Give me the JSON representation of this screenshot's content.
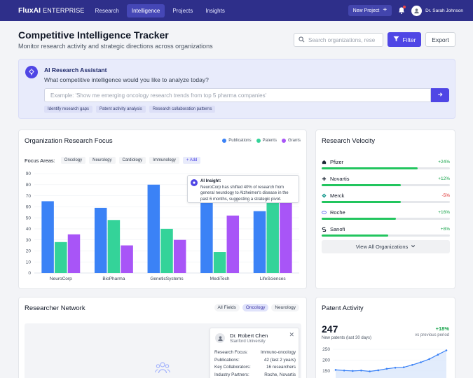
{
  "nav": {
    "brand_bold": "FluxAI",
    "brand_light": "ENTERPRISE",
    "links": [
      "Research",
      "Intelligence",
      "Projects",
      "Insights"
    ],
    "active_link": "Intelligence",
    "new_project": "New Project",
    "user_name": "Dr. Sarah Johnson"
  },
  "header": {
    "title": "Competitive Intelligence Tracker",
    "subtitle": "Monitor research activity and strategic directions across organizations",
    "search_placeholder": "Search organizations, rese",
    "filter_label": "Filter",
    "export_label": "Export"
  },
  "assistant": {
    "title": "AI Research Assistant",
    "question": "What competitive intelligence would you like to analyze today?",
    "input_placeholder": "Example: 'Show me emerging oncology research trends from top 5 pharma companies'",
    "chips": [
      "Identify research gaps",
      "Patent activity analysis",
      "Research collaboration patterns"
    ]
  },
  "org_focus": {
    "title": "Organization Research Focus",
    "legend": [
      "Publications",
      "Patents",
      "Grants"
    ],
    "focus_label": "Focus Areas:",
    "focus_tags": [
      "Oncology",
      "Neurology",
      "Cardiology",
      "Immunology"
    ],
    "add_label": "+ Add",
    "insight_title": "AI Insight:",
    "insight_text": "NeuroCorp has shifted 40% of research from general neurology to Alzheimer's disease in the past 6 months, suggesting a strategic pivot."
  },
  "chart_data": {
    "type": "bar",
    "categories": [
      "NeuroCorp",
      "BioPharma",
      "GeneticSystems",
      "MediTech",
      "LifeSciences"
    ],
    "series": [
      {
        "name": "Publications",
        "values": [
          65,
          59,
          80,
          81,
          56
        ],
        "color": "#3b82f6"
      },
      {
        "name": "Patents",
        "values": [
          28,
          48,
          40,
          19,
          86
        ],
        "color": "#34d399"
      },
      {
        "name": "Grants",
        "values": [
          35,
          25,
          30,
          52,
          65
        ],
        "color": "#a855f7"
      }
    ],
    "ylim": [
      0,
      90
    ],
    "yticks": [
      0,
      10,
      20,
      30,
      40,
      50,
      60,
      70,
      80,
      90
    ]
  },
  "velocity": {
    "title": "Research Velocity",
    "items": [
      {
        "name": "Pfizer",
        "change": "+24%",
        "progress": 0.75,
        "icon": "pfizer-icon"
      },
      {
        "name": "Novartis",
        "change": "+12%",
        "progress": 0.62,
        "icon": "novartis-icon"
      },
      {
        "name": "Merck",
        "change": "-5%",
        "progress": 0.62,
        "icon": "merck-icon"
      },
      {
        "name": "Roche",
        "change": "+16%",
        "progress": 0.58,
        "icon": "roche-icon"
      },
      {
        "name": "Sanofi",
        "change": "+8%",
        "progress": 0.52,
        "icon": "sanofi-icon"
      }
    ],
    "view_all": "View All Organizations"
  },
  "network": {
    "title": "Researcher Network",
    "filters": [
      "All Fields",
      "Oncology",
      "Neurology"
    ],
    "active_filter": "Oncology",
    "profile": {
      "name": "Dr. Robert Chen",
      "institution": "Stanford University",
      "rows": [
        {
          "label": "Research Focus:",
          "value": "Immuno-oncology"
        },
        {
          "label": "Publications:",
          "value": "42 (last 2 years)"
        },
        {
          "label": "Key Collaborators:",
          "value": "16 researchers"
        },
        {
          "label": "Industry Partners:",
          "value": "Roche, Novartis"
        }
      ]
    }
  },
  "patent": {
    "title": "Patent Activity",
    "count": "247",
    "count_label": "New patents (last 30 days)",
    "change": "+18%",
    "change_label": "vs previous period",
    "yticks": [
      150,
      200,
      250
    ],
    "points": [
      155,
      152,
      150,
      152,
      148,
      153,
      160,
      165,
      167,
      178,
      190,
      205,
      225,
      245
    ]
  }
}
